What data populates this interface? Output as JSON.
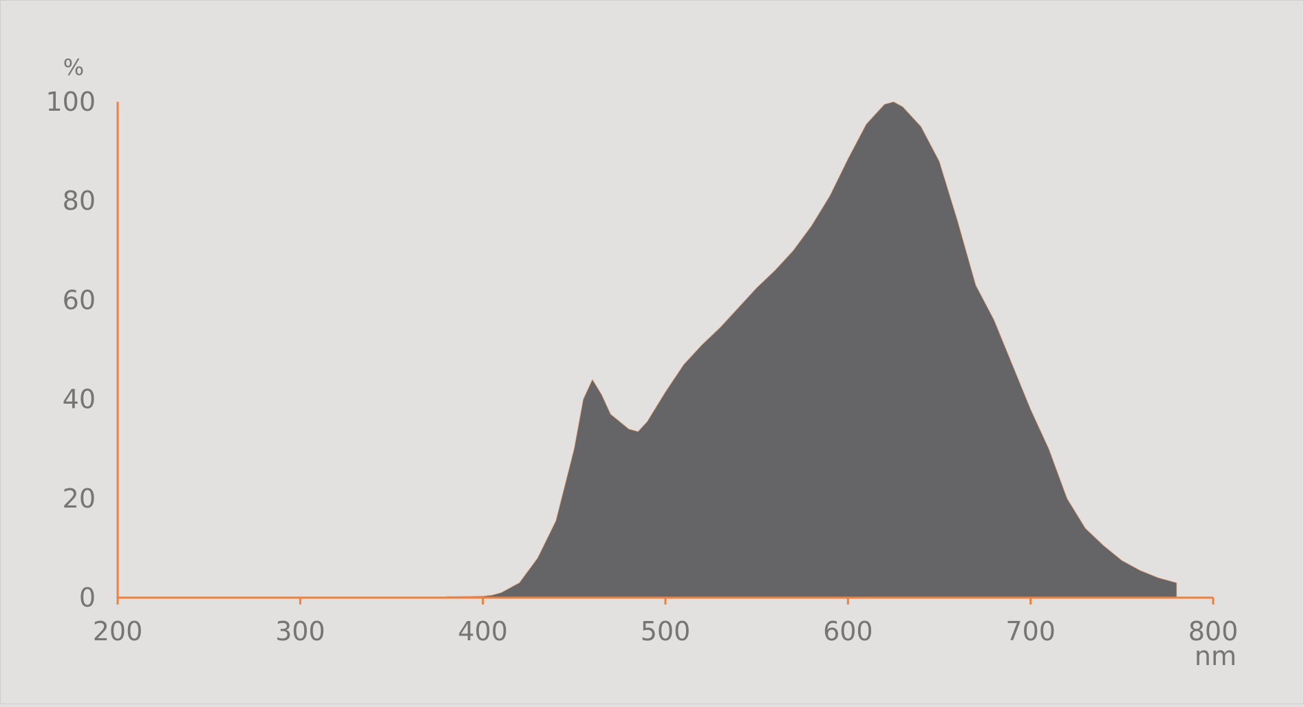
{
  "chart_data": {
    "type": "area",
    "title": "",
    "xlabel": "nm",
    "ylabel": "%",
    "xlim": [
      200,
      800
    ],
    "ylim": [
      0,
      100
    ],
    "x_ticks": [
      "200",
      "300",
      "400",
      "500",
      "600",
      "700",
      "800"
    ],
    "y_ticks": [
      "0",
      "20",
      "40",
      "60",
      "80",
      "100"
    ],
    "grid": false,
    "colors": {
      "fill": "#656567",
      "axis": "#f08040",
      "background": "#e2e1df",
      "text": "#757575"
    },
    "series": [
      {
        "x": [
          380,
          400,
          405,
          410,
          420,
          430,
          440,
          450,
          455,
          460,
          465,
          470,
          480,
          485,
          490,
          500,
          510,
          520,
          530,
          540,
          550,
          560,
          570,
          580,
          590,
          600,
          610,
          620,
          625,
          630,
          640,
          650,
          660,
          670,
          680,
          690,
          700,
          710,
          720,
          730,
          740,
          750,
          760,
          770,
          780
        ],
        "y": [
          0.2,
          0.3,
          0.5,
          1,
          3,
          8,
          15.5,
          30,
          40,
          44,
          41,
          37,
          34,
          33.5,
          35.5,
          41.5,
          47,
          51,
          54.5,
          58.5,
          62.5,
          66,
          70,
          75,
          81,
          88.5,
          95.5,
          99.5,
          100,
          99,
          95,
          88,
          76,
          63,
          56,
          47,
          38,
          30,
          20,
          14,
          10.5,
          7.5,
          5.5,
          4,
          3
        ]
      }
    ]
  }
}
